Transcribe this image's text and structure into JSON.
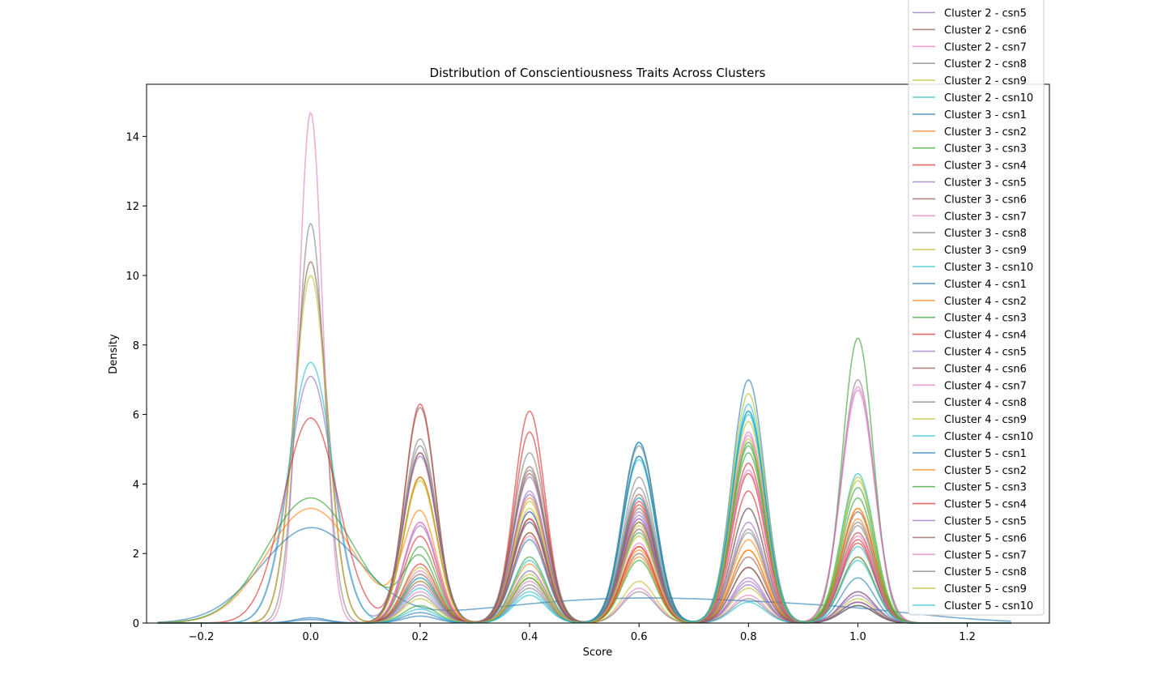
{
  "chart_data": {
    "type": "line",
    "title": "Distribution of Conscientiousness Traits Across Clusters",
    "xlabel": "Score",
    "ylabel": "Density",
    "xlim": [
      -0.3,
      1.35
    ],
    "ylim": [
      0,
      15.5
    ],
    "xticks": [
      -0.2,
      0.0,
      0.2,
      0.4,
      0.6,
      0.8,
      1.0,
      1.2
    ],
    "xtick_labels": [
      "−0.2",
      "0.0",
      "0.2",
      "0.4",
      "0.6",
      "0.8",
      "1.0",
      "1.2"
    ],
    "yticks": [
      0,
      2,
      4,
      6,
      8,
      10,
      12,
      14
    ],
    "ytick_labels": [
      "0",
      "2",
      "4",
      "6",
      "8",
      "10",
      "12",
      "14"
    ],
    "grid": false,
    "legend_position": "top-right",
    "palette": [
      "#1f77b4",
      "#ff7f0e",
      "#2ca02c",
      "#d62728",
      "#9467bd",
      "#8c564b",
      "#e377c2",
      "#7f7f7f",
      "#bcbd22",
      "#17becf"
    ],
    "series": [
      {
        "name": "Cluster 2 - csn5",
        "color": "#9467bd",
        "peaks": [
          [
            0.0,
            7.1,
            0.04
          ],
          [
            0.2,
            4.9,
            0.03
          ],
          [
            0.4,
            3.8,
            0.03
          ],
          [
            0.6,
            3.2,
            0.03
          ],
          [
            0.8,
            1.2,
            0.03
          ],
          [
            1.0,
            0.8,
            0.03
          ]
        ]
      },
      {
        "name": "Cluster 2 - csn6",
        "color": "#8c564b",
        "peaks": [
          [
            0.0,
            10.4,
            0.03
          ],
          [
            0.2,
            4.2,
            0.03
          ],
          [
            0.4,
            3.0,
            0.03
          ],
          [
            0.6,
            2.0,
            0.03
          ],
          [
            0.8,
            1.6,
            0.03
          ],
          [
            1.0,
            0.9,
            0.03
          ]
        ]
      },
      {
        "name": "Cluster 2 - csn7",
        "color": "#e377c2",
        "peaks": [
          [
            0.0,
            14.7,
            0.022
          ],
          [
            0.2,
            1.5,
            0.03
          ],
          [
            0.4,
            1.2,
            0.03
          ],
          [
            0.6,
            1.0,
            0.03
          ],
          [
            0.8,
            0.8,
            0.03
          ],
          [
            1.0,
            0.6,
            0.03
          ]
        ]
      },
      {
        "name": "Cluster 2 - csn8",
        "color": "#7f7f7f",
        "peaks": [
          [
            0.0,
            11.5,
            0.025
          ],
          [
            0.2,
            1.3,
            0.03
          ],
          [
            0.4,
            1.0,
            0.03
          ],
          [
            0.6,
            0.9,
            0.03
          ],
          [
            0.8,
            0.7,
            0.03
          ],
          [
            1.0,
            0.5,
            0.03
          ]
        ]
      },
      {
        "name": "Cluster 2 - csn9",
        "color": "#bcbd22",
        "peaks": [
          [
            0.0,
            10.0,
            0.03
          ],
          [
            0.2,
            1.6,
            0.03
          ],
          [
            0.4,
            1.3,
            0.03
          ],
          [
            0.6,
            1.2,
            0.03
          ],
          [
            0.8,
            1.0,
            0.03
          ],
          [
            1.0,
            0.7,
            0.03
          ]
        ]
      },
      {
        "name": "Cluster 2 - csn10",
        "color": "#17becf",
        "peaks": [
          [
            0.0,
            7.5,
            0.04
          ],
          [
            0.2,
            1.0,
            0.03
          ],
          [
            0.4,
            0.8,
            0.03
          ],
          [
            0.6,
            4.7,
            0.03
          ],
          [
            0.8,
            0.6,
            0.03
          ],
          [
            1.0,
            0.5,
            0.03
          ]
        ]
      },
      {
        "name": "Cluster 3 - csn1",
        "color": "#1f77b4",
        "peaks": [
          [
            0.0,
            2.7,
            0.09
          ],
          [
            0.4,
            0.3,
            0.2
          ],
          [
            0.6,
            0.35,
            0.2
          ],
          [
            0.8,
            0.3,
            0.2
          ],
          [
            1.0,
            0.2,
            0.15
          ]
        ]
      },
      {
        "name": "Cluster 3 - csn2",
        "color": "#ff7f0e",
        "peaks": [
          [
            0.0,
            3.3,
            0.08
          ],
          [
            0.2,
            3.1,
            0.03
          ],
          [
            0.4,
            2.6,
            0.03
          ],
          [
            0.6,
            2.2,
            0.03
          ],
          [
            0.8,
            2.1,
            0.03
          ],
          [
            1.0,
            3.3,
            0.03
          ]
        ]
      },
      {
        "name": "Cluster 3 - csn3",
        "color": "#2ca02c",
        "peaks": [
          [
            0.0,
            3.6,
            0.08
          ],
          [
            0.2,
            1.8,
            0.03
          ],
          [
            0.4,
            1.9,
            0.03
          ],
          [
            0.6,
            2.6,
            0.03
          ],
          [
            0.8,
            5.1,
            0.03
          ],
          [
            1.0,
            8.2,
            0.028
          ]
        ]
      },
      {
        "name": "Cluster 3 - csn4",
        "color": "#d62728",
        "peaks": [
          [
            0.0,
            5.9,
            0.05
          ],
          [
            0.2,
            6.3,
            0.028
          ],
          [
            0.4,
            6.1,
            0.028
          ],
          [
            0.6,
            3.4,
            0.03
          ],
          [
            0.8,
            4.3,
            0.03
          ],
          [
            1.0,
            2.6,
            0.03
          ]
        ]
      },
      {
        "name": "Cluster 3 - csn5",
        "color": "#9467bd",
        "peaks": [
          [
            0.2,
            2.8,
            0.03
          ],
          [
            0.4,
            4.2,
            0.03
          ],
          [
            0.6,
            3.6,
            0.03
          ],
          [
            0.8,
            2.9,
            0.03
          ],
          [
            1.0,
            1.9,
            0.03
          ]
        ]
      },
      {
        "name": "Cluster 3 - csn6",
        "color": "#8c564b",
        "peaks": [
          [
            0.2,
            6.2,
            0.028
          ],
          [
            0.4,
            4.5,
            0.03
          ],
          [
            0.6,
            3.3,
            0.03
          ],
          [
            0.8,
            3.3,
            0.03
          ],
          [
            1.0,
            3.2,
            0.03
          ]
        ]
      },
      {
        "name": "Cluster 3 - csn7",
        "color": "#e377c2",
        "peaks": [
          [
            0.2,
            2.9,
            0.03
          ],
          [
            0.4,
            3.2,
            0.03
          ],
          [
            0.6,
            3.0,
            0.03
          ],
          [
            0.8,
            5.4,
            0.03
          ],
          [
            1.0,
            6.7,
            0.03
          ]
        ]
      },
      {
        "name": "Cluster 3 - csn8",
        "color": "#7f7f7f",
        "peaks": [
          [
            0.2,
            5.3,
            0.03
          ],
          [
            0.4,
            4.9,
            0.03
          ],
          [
            0.6,
            3.9,
            0.03
          ],
          [
            0.8,
            3.3,
            0.03
          ],
          [
            1.0,
            7.0,
            0.03
          ]
        ]
      },
      {
        "name": "Cluster 3 - csn9",
        "color": "#bcbd22",
        "peaks": [
          [
            0.2,
            4.2,
            0.03
          ],
          [
            0.4,
            3.5,
            0.03
          ],
          [
            0.6,
            2.9,
            0.03
          ],
          [
            0.8,
            5.8,
            0.03
          ],
          [
            1.0,
            4.2,
            0.03
          ]
        ]
      },
      {
        "name": "Cluster 3 - csn10",
        "color": "#17becf",
        "peaks": [
          [
            0.2,
            1.2,
            0.03
          ],
          [
            0.4,
            1.5,
            0.03
          ],
          [
            0.6,
            5.2,
            0.03
          ],
          [
            0.8,
            6.3,
            0.03
          ],
          [
            1.0,
            4.3,
            0.03
          ]
        ]
      },
      {
        "name": "Cluster 4 - csn1",
        "color": "#1f77b4",
        "peaks": [
          [
            0.0,
            0.15,
            0.03
          ],
          [
            0.2,
            0.3,
            0.03
          ],
          [
            0.4,
            3.2,
            0.03
          ],
          [
            0.6,
            5.2,
            0.03
          ],
          [
            0.8,
            7.0,
            0.03
          ],
          [
            1.0,
            1.3,
            0.03
          ]
        ]
      },
      {
        "name": "Cluster 4 - csn2",
        "color": "#ff7f0e",
        "peaks": [
          [
            0.2,
            4.2,
            0.03
          ],
          [
            0.4,
            3.6,
            0.03
          ],
          [
            0.6,
            2.1,
            0.03
          ],
          [
            0.8,
            2.1,
            0.03
          ],
          [
            1.0,
            3.3,
            0.03
          ]
        ]
      },
      {
        "name": "Cluster 4 - csn3",
        "color": "#2ca02c",
        "peaks": [
          [
            0.2,
            2.2,
            0.03
          ],
          [
            0.4,
            2.9,
            0.03
          ],
          [
            0.6,
            2.7,
            0.03
          ],
          [
            0.8,
            5.2,
            0.03
          ],
          [
            1.0,
            3.9,
            0.03
          ]
        ]
      },
      {
        "name": "Cluster 4 - csn4",
        "color": "#d62728",
        "peaks": [
          [
            0.2,
            2.5,
            0.03
          ],
          [
            0.4,
            5.5,
            0.028
          ],
          [
            0.6,
            3.5,
            0.03
          ],
          [
            0.8,
            4.6,
            0.03
          ],
          [
            1.0,
            2.4,
            0.03
          ]
        ]
      },
      {
        "name": "Cluster 4 - csn5",
        "color": "#9467bd",
        "peaks": [
          [
            0.2,
            4.8,
            0.03
          ],
          [
            0.4,
            3.7,
            0.03
          ],
          [
            0.6,
            3.1,
            0.03
          ],
          [
            0.8,
            1.3,
            0.03
          ],
          [
            1.0,
            0.9,
            0.03
          ]
        ]
      },
      {
        "name": "Cluster 4 - csn6",
        "color": "#8c564b",
        "peaks": [
          [
            0.2,
            4.9,
            0.03
          ],
          [
            0.4,
            4.3,
            0.03
          ],
          [
            0.6,
            3.7,
            0.03
          ],
          [
            0.8,
            1.6,
            0.03
          ],
          [
            1.0,
            0.6,
            0.03
          ]
        ]
      },
      {
        "name": "Cluster 4 - csn7",
        "color": "#e377c2",
        "peaks": [
          [
            0.2,
            2.9,
            0.03
          ],
          [
            0.4,
            2.5,
            0.03
          ],
          [
            0.6,
            2.3,
            0.03
          ],
          [
            0.8,
            5.5,
            0.03
          ],
          [
            1.0,
            6.8,
            0.03
          ]
        ]
      },
      {
        "name": "Cluster 4 - csn8",
        "color": "#7f7f7f",
        "peaks": [
          [
            0.2,
            5.1,
            0.03
          ],
          [
            0.4,
            4.4,
            0.03
          ],
          [
            0.6,
            5.1,
            0.03
          ],
          [
            0.8,
            2.6,
            0.03
          ],
          [
            1.0,
            2.8,
            0.03
          ]
        ]
      },
      {
        "name": "Cluster 4 - csn9",
        "color": "#bcbd22",
        "peaks": [
          [
            0.2,
            4.1,
            0.03
          ],
          [
            0.4,
            3.3,
            0.03
          ],
          [
            0.6,
            2.8,
            0.03
          ],
          [
            0.8,
            6.6,
            0.03
          ],
          [
            1.0,
            4.1,
            0.03
          ]
        ]
      },
      {
        "name": "Cluster 4 - csn10",
        "color": "#17becf",
        "peaks": [
          [
            0.2,
            1.3,
            0.03
          ],
          [
            0.4,
            1.8,
            0.03
          ],
          [
            0.6,
            4.8,
            0.03
          ],
          [
            0.8,
            6.0,
            0.03
          ],
          [
            1.0,
            2.2,
            0.03
          ]
        ]
      },
      {
        "name": "Cluster 5 - csn1",
        "color": "#1f77b4",
        "peaks": [
          [
            0.0,
            0.1,
            0.03
          ],
          [
            0.2,
            0.2,
            0.03
          ],
          [
            0.4,
            2.4,
            0.03
          ],
          [
            0.6,
            4.8,
            0.03
          ],
          [
            0.8,
            6.1,
            0.03
          ],
          [
            1.0,
            1.9,
            0.03
          ]
        ]
      },
      {
        "name": "Cluster 5 - csn2",
        "color": "#ff7f0e",
        "peaks": [
          [
            0.2,
            1.2,
            0.03
          ],
          [
            0.4,
            1.7,
            0.03
          ],
          [
            0.6,
            1.9,
            0.03
          ],
          [
            0.8,
            2.4,
            0.03
          ],
          [
            1.0,
            3.0,
            0.03
          ]
        ]
      },
      {
        "name": "Cluster 5 - csn3",
        "color": "#2ca02c",
        "peaks": [
          [
            0.2,
            0.5,
            0.03
          ],
          [
            0.4,
            1.3,
            0.03
          ],
          [
            0.6,
            1.8,
            0.03
          ],
          [
            0.8,
            4.9,
            0.03
          ],
          [
            1.0,
            3.6,
            0.03
          ]
        ]
      },
      {
        "name": "Cluster 5 - csn4",
        "color": "#d62728",
        "peaks": [
          [
            0.2,
            1.7,
            0.03
          ],
          [
            0.4,
            3.0,
            0.03
          ],
          [
            0.6,
            2.2,
            0.03
          ],
          [
            0.8,
            3.8,
            0.03
          ],
          [
            1.0,
            2.3,
            0.03
          ]
        ]
      },
      {
        "name": "Cluster 5 - csn5",
        "color": "#9467bd",
        "peaks": [
          [
            0.2,
            1.1,
            0.03
          ],
          [
            0.4,
            2.9,
            0.03
          ],
          [
            0.6,
            3.0,
            0.03
          ],
          [
            0.8,
            1.1,
            0.03
          ],
          [
            1.0,
            0.6,
            0.03
          ]
        ]
      },
      {
        "name": "Cluster 5 - csn6",
        "color": "#8c564b",
        "peaks": [
          [
            0.2,
            1.4,
            0.03
          ],
          [
            0.4,
            2.6,
            0.03
          ],
          [
            0.6,
            2.9,
            0.03
          ],
          [
            0.8,
            1.9,
            0.03
          ],
          [
            1.0,
            0.5,
            0.03
          ]
        ]
      },
      {
        "name": "Cluster 5 - csn7",
        "color": "#e377c2",
        "peaks": [
          [
            0.2,
            0.9,
            0.03
          ],
          [
            0.4,
            1.5,
            0.03
          ],
          [
            0.6,
            2.7,
            0.03
          ],
          [
            0.8,
            4.4,
            0.03
          ],
          [
            1.0,
            2.5,
            0.03
          ]
        ]
      },
      {
        "name": "Cluster 5 - csn8",
        "color": "#7f7f7f",
        "peaks": [
          [
            0.2,
            0.8,
            0.03
          ],
          [
            0.4,
            1.1,
            0.03
          ],
          [
            0.6,
            4.2,
            0.03
          ],
          [
            0.8,
            2.7,
            0.03
          ],
          [
            1.0,
            2.9,
            0.03
          ]
        ]
      },
      {
        "name": "Cluster 5 - csn9",
        "color": "#bcbd22",
        "peaks": [
          [
            0.2,
            0.7,
            0.03
          ],
          [
            0.4,
            1.4,
            0.03
          ],
          [
            0.6,
            2.5,
            0.03
          ],
          [
            0.8,
            5.3,
            0.03
          ],
          [
            1.0,
            1.9,
            0.03
          ]
        ]
      },
      {
        "name": "Cluster 5 - csn10",
        "color": "#17becf",
        "peaks": [
          [
            0.2,
            0.4,
            0.03
          ],
          [
            0.4,
            0.9,
            0.03
          ],
          [
            0.6,
            3.6,
            0.03
          ],
          [
            0.8,
            6.1,
            0.03
          ],
          [
            1.0,
            1.8,
            0.03
          ]
        ]
      }
    ]
  }
}
